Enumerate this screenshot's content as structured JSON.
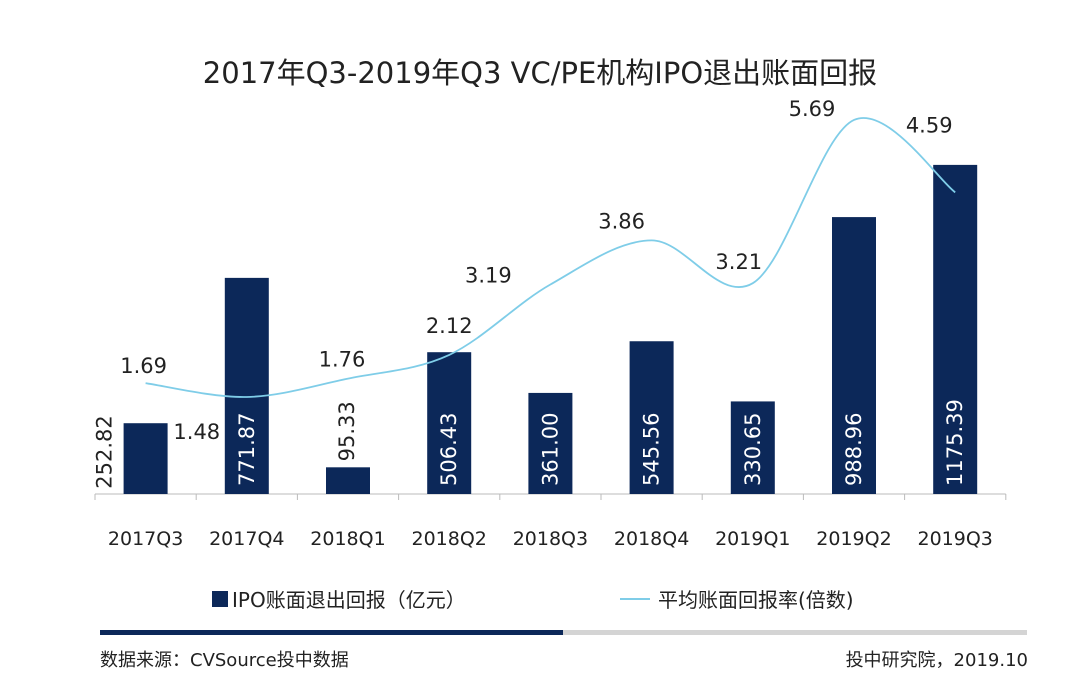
{
  "chart_data": {
    "type": "bar",
    "title": "2017年Q3-2019年Q3 VC/PE机构IPO退出账面回报",
    "categories": [
      "2017Q3",
      "2017Q4",
      "2018Q1",
      "2018Q2",
      "2018Q3",
      "2018Q4",
      "2019Q1",
      "2019Q2",
      "2019Q3"
    ],
    "series": [
      {
        "name": "IPO账面退出回报（亿元）",
        "type": "bar",
        "color": "#0c2859",
        "values": [
          252.82,
          771.87,
          95.33,
          506.43,
          361.0,
          545.56,
          330.65,
          988.96,
          1175.39
        ],
        "labels": [
          "252.82",
          "771.87",
          "95.33",
          "506.43",
          "361.00",
          "545.56",
          "330.65",
          "988.96",
          "1175.39"
        ]
      },
      {
        "name": "平均账面回报率(倍数)",
        "type": "line",
        "color": "#7fcde8",
        "values": [
          1.69,
          1.48,
          1.76,
          2.12,
          3.19,
          3.86,
          3.21,
          5.69,
          4.59
        ],
        "labels": [
          "1.69",
          "1.48",
          "1.76",
          "2.12",
          "3.19",
          "3.86",
          "3.21",
          "5.69",
          "4.59"
        ]
      }
    ],
    "legend_position": "bottom",
    "grid": false
  },
  "footer": {
    "source": "数据来源：CVSource投中数据",
    "credit": "投中研究院，2019.10"
  }
}
